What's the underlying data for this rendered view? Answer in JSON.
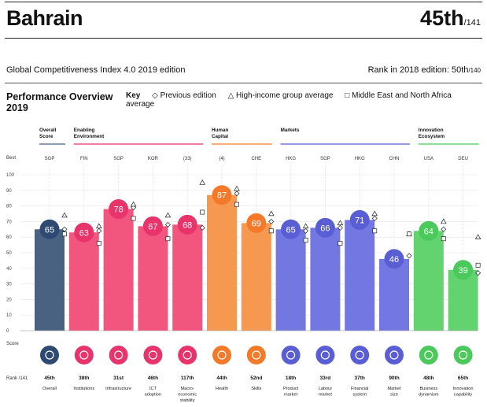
{
  "header": {
    "country": "Bahrain",
    "rank": "45th",
    "rank_of": "/141",
    "edition": "Global Competitiveness Index 4.0 2019 edition",
    "prev_rank_label": "Rank in 2018 edition: 50th",
    "prev_rank_of": "/140",
    "perf_title_1": "Performance Overview",
    "perf_title_2": "2019"
  },
  "key": {
    "label": "Key",
    "previous": "Previous edition",
    "high_income": "High-income group average",
    "mena": "Middle East and North Africa average"
  },
  "chart_data": {
    "type": "bar",
    "axis": {
      "best_label": "Best",
      "score_label": "Score",
      "rank_label": "Rank /141",
      "ylim": [
        0,
        100
      ],
      "ticks": [
        "100",
        "90",
        "80",
        "70",
        "60",
        "50",
        "40",
        "30",
        "20",
        "10",
        "0"
      ]
    },
    "groups": [
      {
        "label_1": "Overall",
        "label_2": "Score",
        "color": "#4a6282",
        "start": 0,
        "end": 0
      },
      {
        "label_1": "Enabling",
        "label_2": "Environment",
        "color": "#e8336b",
        "start": 1,
        "end": 4
      },
      {
        "label_1": "Human",
        "label_2": "Capital",
        "color": "#f47a2a",
        "start": 5,
        "end": 6
      },
      {
        "label_1": "Markets",
        "label_2": "",
        "color": "#5a5ed4",
        "start": 7,
        "end": 10
      },
      {
        "label_1": "Innovation",
        "label_2": "Ecosystem",
        "color": "#4bc95b",
        "start": 11,
        "end": 12
      }
    ],
    "pillars": [
      {
        "best": "SGP",
        "score": 65,
        "score_label": "65",
        "prev": 65,
        "high": 74,
        "mena": 62,
        "rank": "45th",
        "name_1": "Overall",
        "name_2": "",
        "name_3": "",
        "color": "#4a6282",
        "circle": "#2e4a73",
        "icon": "medal-icon"
      },
      {
        "best": "FIN",
        "score": 63,
        "score_label": "63",
        "prev": 64,
        "high": 67,
        "mena": 56,
        "rank": "38th",
        "name_1": "Institutions",
        "name_2": "",
        "name_3": "",
        "color": "#f2557e",
        "circle": "#e8336b",
        "icon": "institution-icon"
      },
      {
        "best": "SGP",
        "score": 78,
        "score_label": "78",
        "prev": 79,
        "high": 81,
        "mena": 72,
        "rank": "31st",
        "name_1": "Infrastructure",
        "name_2": "",
        "name_3": "",
        "color": "#f2557e",
        "circle": "#e8336b",
        "icon": "train-icon"
      },
      {
        "best": "KOR",
        "score": 67,
        "score_label": "67",
        "prev": 68,
        "high": 74,
        "mena": 59,
        "rank": "46th",
        "name_1": "ICT",
        "name_2": "adoption",
        "name_3": "",
        "color": "#f2557e",
        "circle": "#e8336b",
        "icon": "chip-icon"
      },
      {
        "best": "(33)",
        "score": 68,
        "score_label": "68",
        "prev": 66,
        "high": 95,
        "mena": 76,
        "rank": "117th",
        "name_1": "Macro-",
        "name_2": "economic",
        "name_3": "stability",
        "color": "#f2557e",
        "circle": "#e8336b",
        "icon": "percent-icon"
      },
      {
        "best": "(4)",
        "score": 87,
        "score_label": "87",
        "prev": 88,
        "high": 91,
        "mena": 81,
        "rank": "44th",
        "name_1": "Health",
        "name_2": "",
        "name_3": "",
        "color": "#f79850",
        "circle": "#f47a2a",
        "icon": "heart-icon"
      },
      {
        "best": "CHE",
        "score": 69,
        "score_label": "69",
        "prev": 70,
        "high": 75,
        "mena": 64,
        "rank": "52nd",
        "name_1": "Skills",
        "name_2": "",
        "name_3": "",
        "color": "#f79850",
        "circle": "#f47a2a",
        "icon": "graduate-icon"
      },
      {
        "best": "HKG",
        "score": 65,
        "score_label": "65",
        "prev": 64,
        "high": 67,
        "mena": 58,
        "rank": "18th",
        "name_1": "Product",
        "name_2": "market",
        "name_3": "",
        "color": "#7377e2",
        "circle": "#5a5ed4",
        "icon": "tag-icon"
      },
      {
        "best": "SGP",
        "score": 66,
        "score_label": "66",
        "prev": 66,
        "high": 69,
        "mena": 56,
        "rank": "33rd",
        "name_1": "Labour",
        "name_2": "market",
        "name_3": "",
        "color": "#7377e2",
        "circle": "#5a5ed4",
        "icon": "people-icon"
      },
      {
        "best": "HKG",
        "score": 71,
        "score_label": "71",
        "prev": 72,
        "high": 75,
        "mena": 64,
        "rank": "37th",
        "name_1": "Financial",
        "name_2": "system",
        "name_3": "",
        "color": "#7377e2",
        "circle": "#5a5ed4",
        "icon": "card-icon"
      },
      {
        "best": "CHN",
        "score": 46,
        "score_label": "46",
        "prev": 48,
        "high": 62,
        "mena": 62,
        "rank": "90th",
        "name_1": "Market",
        "name_2": "size",
        "name_3": "",
        "color": "#7377e2",
        "circle": "#5a5ed4",
        "icon": "expand-icon"
      },
      {
        "best": "USA",
        "score": 64,
        "score_label": "64",
        "prev": 65,
        "high": 70,
        "mena": 59,
        "rank": "48th",
        "name_1": "Business",
        "name_2": "dynamism",
        "name_3": "",
        "color": "#62d36f",
        "circle": "#4bc95b",
        "icon": "building-icon"
      },
      {
        "best": "DEU",
        "score": 39,
        "score_label": "39",
        "prev": 37,
        "high": 60,
        "mena": 42,
        "rank": "65th",
        "name_1": "Innovation",
        "name_2": "capability",
        "name_3": "",
        "color": "#62d36f",
        "circle": "#4bc95b",
        "icon": "bulb-icon"
      }
    ]
  }
}
